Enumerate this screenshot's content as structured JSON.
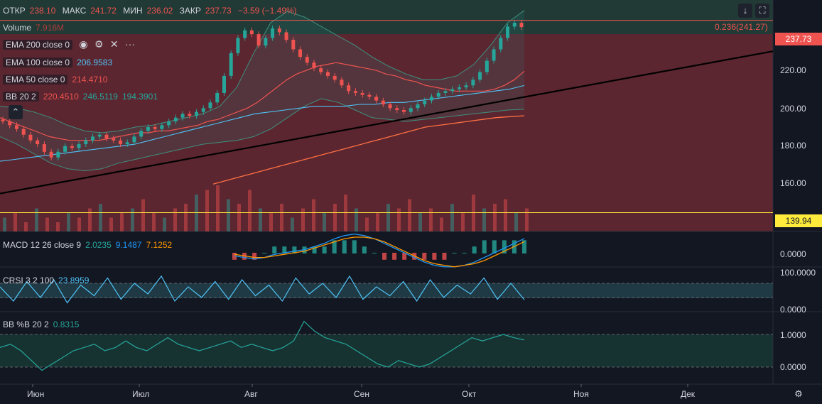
{
  "ohlc": {
    "open_label": "ОТКР",
    "open": "238.10",
    "high_label": "МАКС",
    "high": "241.72",
    "low_label": "МИН",
    "low": "236.02",
    "close_label": "ЗАКР",
    "close": "237.73",
    "change": "−3.59 (−1.49%)"
  },
  "volume": {
    "label": "Volume",
    "value": "7.916M"
  },
  "indicators": {
    "ema200": {
      "label": "EMA 200 close 0",
      "color": "#ff7043"
    },
    "ema100": {
      "label": "EMA 100 close 0",
      "value": "206.9583",
      "color": "#4fc3f7"
    },
    "ema50": {
      "label": "EMA 50 close 0",
      "value": "214.4710",
      "color": "#ef5350"
    },
    "bb": {
      "label": "BB 20 2",
      "v1": "220.4510",
      "v2": "246.5119",
      "v3": "194.3901",
      "c1": "#ef5350",
      "c2": "#26a69a",
      "c3": "#26a69a"
    },
    "macd": {
      "label": "MACD 12 26 close 9",
      "v1": "2.0235",
      "v2": "9.1487",
      "v3": "7.1252",
      "c1": "#26a69a",
      "c2": "#2196f3",
      "c3": "#ff9800"
    },
    "crsi": {
      "label": "CRSI 3 2 100",
      "value": "23.8959",
      "color": "#4fc3f7"
    },
    "bbpb": {
      "label": "BB %B 20 2",
      "value": "0.8315",
      "color": "#26a69a"
    }
  },
  "icons": [
    "eye-icon",
    "gear-icon",
    "close-icon",
    "more-icon",
    "chevron-up-icon",
    "arrow-down-icon",
    "fullscreen-icon",
    "settings-icon"
  ],
  "fib_label": "0.236(241.27)",
  "price_tags": {
    "current": "237.73",
    "support": "139.94"
  },
  "colors": {
    "bg": "#131722",
    "up": "#26a69a",
    "down": "#ef5350",
    "trend": "#000000",
    "support": "#ffeb3b"
  },
  "chart_data": {
    "type": "line",
    "main_pane": {
      "y_ticks": [
        "240.00",
        "220.00",
        "200.00",
        "180.00",
        "160.00"
      ],
      "ylim": [
        130,
        252
      ],
      "x_ticks": [
        "Июн",
        "Июл",
        "Авг",
        "Сен",
        "Окт",
        "Ноя",
        "Дек"
      ],
      "close_series": [
        188,
        186,
        184,
        181,
        178,
        176,
        172,
        169,
        172,
        175,
        174,
        176,
        178,
        180,
        181,
        179,
        178,
        176,
        177,
        180,
        183,
        185,
        184,
        186,
        188,
        190,
        192,
        191,
        193,
        195,
        198,
        203,
        212,
        224,
        232,
        236,
        234,
        228,
        232,
        237,
        235,
        231,
        226,
        222,
        219,
        216,
        214,
        212,
        210,
        207,
        204,
        203,
        202,
        201,
        199,
        197,
        195,
        194,
        193,
        195,
        197,
        199,
        201,
        203,
        204,
        205,
        206,
        207,
        210,
        214,
        220,
        226,
        232,
        238,
        240,
        237.73
      ],
      "ema50_series": [
        190,
        188,
        186,
        184,
        182,
        180,
        179,
        178,
        178,
        178,
        178,
        179,
        180,
        181,
        182,
        182,
        183,
        183,
        184,
        185,
        186,
        188,
        189,
        191,
        193,
        195,
        198,
        202,
        206,
        210,
        213,
        215,
        217,
        218,
        219,
        218,
        217,
        216,
        215,
        213,
        212,
        210,
        209,
        207,
        206,
        205,
        204,
        204,
        204,
        204,
        205,
        207,
        210,
        214.47
      ],
      "ema100_series": [
        167,
        168,
        169,
        170,
        171,
        172,
        173,
        174,
        175,
        176,
        178,
        180,
        182,
        184,
        186,
        188,
        190,
        192,
        193,
        194,
        195,
        196,
        196,
        196,
        197,
        197,
        198,
        198,
        199,
        200,
        201,
        202,
        203,
        204,
        205,
        206.96
      ],
      "ema200_series": [
        155,
        157,
        159,
        161,
        163,
        165,
        167,
        169,
        171,
        173,
        175,
        177,
        179,
        181,
        183,
        185,
        186,
        187,
        188,
        189,
        190,
        190.5,
        191
      ],
      "bb_upper": [
        196,
        195,
        193,
        190,
        186,
        183,
        182,
        183,
        185,
        186,
        188,
        190,
        192,
        196,
        206,
        224,
        240,
        246,
        243,
        238,
        233,
        228,
        222,
        217,
        213,
        210,
        210,
        212,
        218,
        228,
        240,
        246.51
      ],
      "bb_lower": [
        180,
        176,
        171,
        166,
        163,
        162,
        163,
        166,
        168,
        170,
        172,
        174,
        176,
        177,
        178,
        180,
        184,
        190,
        196,
        200,
        198,
        194,
        190,
        189,
        188,
        189,
        190,
        191,
        192,
        193,
        194,
        194.39
      ],
      "trendline": {
        "from": [
          0,
          150
        ],
        "to": [
          1,
          225
        ]
      },
      "fib_level": 241.27,
      "support_level": 139.94,
      "volume_bars": [
        0.3,
        0.4,
        0.2,
        0.5,
        0.3,
        0.2,
        0.4,
        0.3,
        0.5,
        0.6,
        0.3,
        0.4,
        0.5,
        0.7,
        0.4,
        0.3,
        0.5,
        0.6,
        0.8,
        0.9,
        1.0,
        0.7,
        0.6,
        0.9,
        0.5,
        0.4,
        0.6,
        0.3,
        0.5,
        0.7,
        0.4,
        0.6,
        0.8,
        0.5,
        0.3,
        0.4,
        0.6,
        0.5,
        0.7,
        0.4,
        0.5,
        0.3,
        0.6,
        0.4,
        0.8,
        0.5,
        0.6,
        0.7,
        0.4,
        0.5
      ]
    },
    "macd_pane": {
      "y_ticks": [
        "0.0000"
      ],
      "macd": [
        -2,
        -3,
        -4,
        -3,
        -1,
        0,
        1,
        2,
        4,
        6,
        9,
        11,
        12,
        11,
        9,
        6,
        3,
        0,
        -3,
        -6,
        -8,
        -9,
        -9,
        -8,
        -6,
        -3,
        0,
        3,
        6,
        9.15
      ],
      "signal": [
        -1,
        -2,
        -3,
        -3,
        -2,
        -1,
        0,
        1,
        3,
        5,
        7,
        9,
        10,
        10,
        9,
        7,
        4,
        1,
        -2,
        -5,
        -7,
        -8,
        -9,
        -8,
        -7,
        -5,
        -2,
        1,
        4,
        7.13
      ]
    },
    "crsi_pane": {
      "y_ticks": [
        "100.0000",
        "0.0000"
      ],
      "levels": [
        70,
        30
      ],
      "series": [
        60,
        20,
        75,
        30,
        80,
        15,
        65,
        35,
        85,
        25,
        70,
        40,
        90,
        20,
        60,
        30,
        75,
        25,
        80,
        35,
        65,
        20,
        85,
        40,
        70,
        30,
        90,
        25,
        60,
        35,
        75,
        20,
        80,
        30,
        65,
        40,
        85,
        25,
        70,
        23.9
      ]
    },
    "bbpb_pane": {
      "y_ticks": [
        "1.0000",
        "0.0000"
      ],
      "levels": [
        1.0,
        0.0
      ],
      "series": [
        0.6,
        0.7,
        0.5,
        0.2,
        -0.1,
        0.1,
        0.3,
        0.5,
        0.6,
        0.7,
        0.5,
        0.6,
        0.8,
        0.6,
        0.5,
        0.7,
        0.9,
        0.7,
        0.6,
        0.5,
        0.6,
        0.7,
        0.8,
        0.6,
        0.7,
        0.6,
        0.5,
        0.6,
        0.8,
        1.4,
        1.1,
        0.9,
        0.8,
        0.7,
        0.5,
        0.3,
        0.1,
        0.0,
        0.2,
        0.1,
        0.0,
        0.1,
        0.3,
        0.5,
        0.7,
        0.9,
        0.8,
        0.9,
        1.0,
        0.9,
        0.83
      ]
    }
  }
}
